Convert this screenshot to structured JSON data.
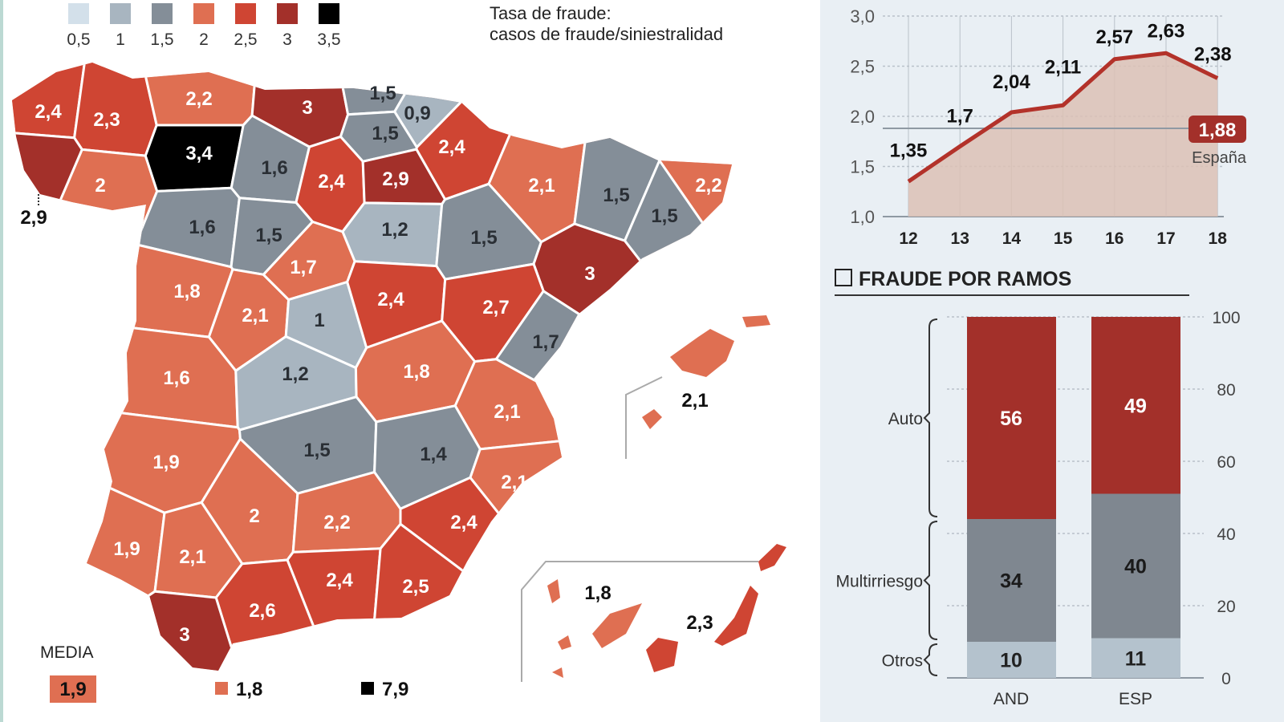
{
  "title": [
    "Tasa de fraude:",
    "casos de fraude/siniestralidad"
  ],
  "legend": [
    {
      "label": "0,5",
      "color": "#d3e0ea"
    },
    {
      "label": "1",
      "color": "#a8b5c0"
    },
    {
      "label": "1,5",
      "color": "#848e98"
    },
    {
      "label": "2",
      "color": "#df6f52"
    },
    {
      "label": "2,5",
      "color": "#cf4533"
    },
    {
      "label": "3",
      "color": "#a3302a"
    },
    {
      "label": "3,5",
      "color": "#000000"
    }
  ],
  "map": {
    "provinces": [
      {
        "value": "2,4",
        "tier": 4
      },
      {
        "value": "2,3",
        "tier": 4
      },
      {
        "value": "2,9",
        "tier": 5
      },
      {
        "value": "2",
        "tier": 3
      },
      {
        "value": "2,2",
        "tier": 3
      },
      {
        "value": "3",
        "tier": 5
      },
      {
        "value": "1,5",
        "tier": 2
      },
      {
        "value": "0,9",
        "tier": 1
      },
      {
        "value": "1,5",
        "tier": 2
      },
      {
        "value": "2,4",
        "tier": 4
      },
      {
        "value": "3,4",
        "tier": 6
      },
      {
        "value": "1,6",
        "tier": 2
      },
      {
        "value": "2,4",
        "tier": 4
      },
      {
        "value": "2,9",
        "tier": 5
      },
      {
        "value": "2,1",
        "tier": 3
      },
      {
        "value": "1,5",
        "tier": 2
      },
      {
        "value": "2,2",
        "tier": 3
      },
      {
        "value": "1,5",
        "tier": 2
      },
      {
        "value": "1,6",
        "tier": 2
      },
      {
        "value": "1,5",
        "tier": 2
      },
      {
        "value": "1,2",
        "tier": 1
      },
      {
        "value": "1,5",
        "tier": 2
      },
      {
        "value": "3",
        "tier": 5
      },
      {
        "value": "1,8",
        "tier": 3
      },
      {
        "value": "2,1",
        "tier": 3
      },
      {
        "value": "1,7",
        "tier": 3
      },
      {
        "value": "1",
        "tier": 1
      },
      {
        "value": "2,4",
        "tier": 4
      },
      {
        "value": "2,7",
        "tier": 4
      },
      {
        "value": "1,7",
        "tier": 2
      },
      {
        "value": "1,6",
        "tier": 3
      },
      {
        "value": "1,2",
        "tier": 1
      },
      {
        "value": "1,8",
        "tier": 3
      },
      {
        "value": "2,1",
        "tier": 3
      },
      {
        "value": "1,9",
        "tier": 3
      },
      {
        "value": "1,5",
        "tier": 2
      },
      {
        "value": "1,4",
        "tier": 2
      },
      {
        "value": "2,1",
        "tier": 3
      },
      {
        "value": "1,9",
        "tier": 3
      },
      {
        "value": "2,1",
        "tier": 3
      },
      {
        "value": "2",
        "tier": 3
      },
      {
        "value": "2,2",
        "tier": 3
      },
      {
        "value": "2,4",
        "tier": 4
      },
      {
        "value": "2,4",
        "tier": 4
      },
      {
        "value": "2,5",
        "tier": 4
      },
      {
        "value": "2,6",
        "tier": 4
      },
      {
        "value": "3",
        "tier": 5
      }
    ],
    "baleares": {
      "value": "2,1",
      "tier": 3
    },
    "canarias": [
      {
        "value": "1,8",
        "tier": 3
      },
      {
        "value": "2,3",
        "tier": 4
      }
    ],
    "media_label": "MEDIA",
    "media_value": "1,9",
    "extra_values": [
      {
        "value": "1,8",
        "color": "#df6f52"
      },
      {
        "value": "7,9",
        "color": "#000000"
      }
    ]
  },
  "chart_data": [
    {
      "type": "area",
      "x": [
        "12",
        "13",
        "14",
        "15",
        "16",
        "17",
        "18"
      ],
      "values": [
        1.35,
        1.7,
        2.04,
        2.11,
        2.57,
        2.63,
        2.38
      ],
      "labels": [
        "1,35",
        "1,7",
        "2,04",
        "2,11",
        "2,57",
        "2,63",
        "2,38"
      ],
      "ylim": [
        1.0,
        3.0
      ],
      "yticks": [
        "1,0",
        "1,5",
        "2,0",
        "2,5",
        "3,0"
      ],
      "reference": {
        "value": 1.88,
        "label": "1,88",
        "name": "España"
      },
      "line_color": "#b3322a",
      "fill_color": "#dcc1b5",
      "grid": true
    },
    {
      "type": "bar",
      "title": "FRAUDE POR RAMOS",
      "stacked": true,
      "categories": [
        "AND",
        "ESP"
      ],
      "series": [
        {
          "name": "Otros",
          "values": [
            10,
            11
          ],
          "color": "#b4c2cd"
        },
        {
          "name": "Multirriesgo",
          "values": [
            34,
            40
          ],
          "color": "#7f8790"
        },
        {
          "name": "Auto",
          "values": [
            56,
            49
          ],
          "color": "#a3302a"
        }
      ],
      "ylim": [
        0,
        100
      ],
      "yticks": [
        "0",
        "20",
        "40",
        "60",
        "80",
        "100"
      ]
    }
  ]
}
